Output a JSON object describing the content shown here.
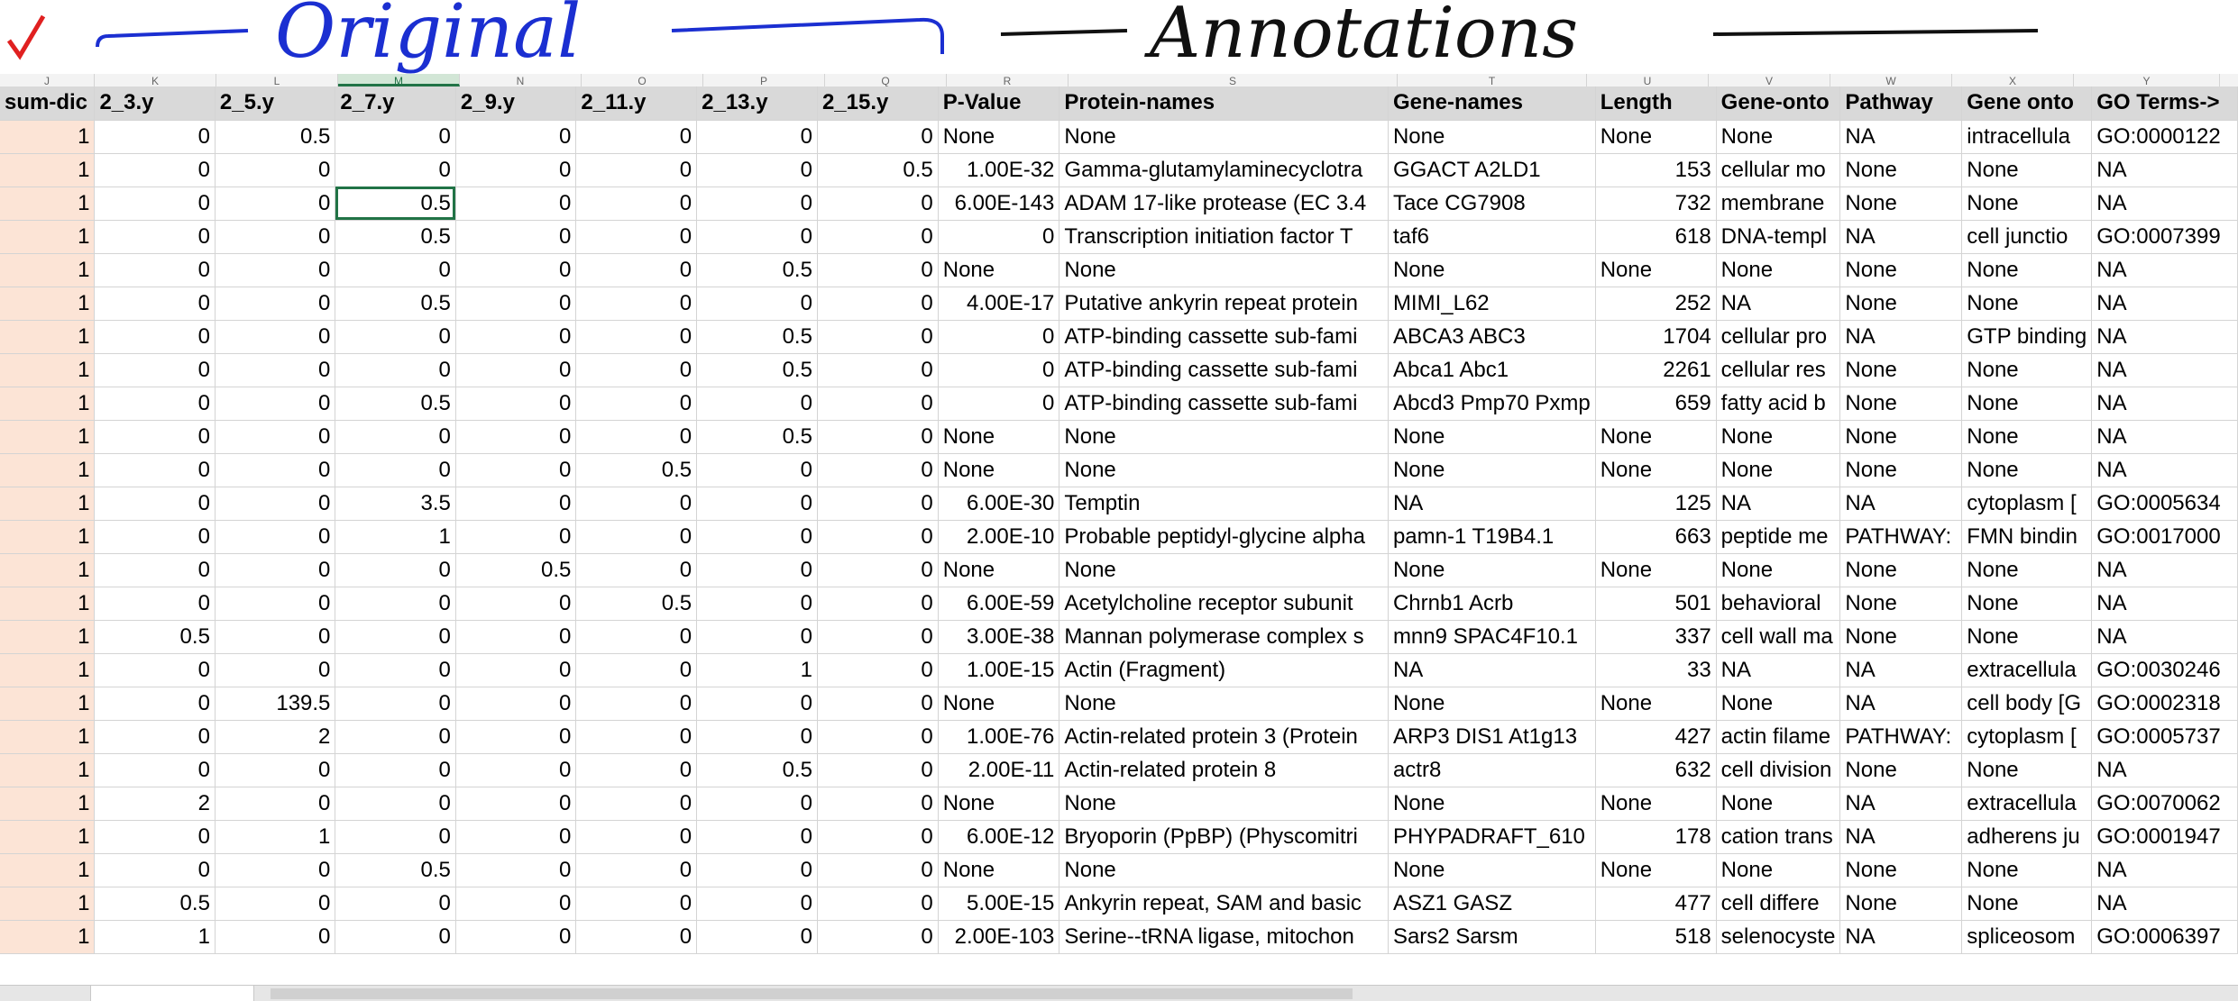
{
  "annotations": {
    "checkmark": "✓",
    "left_label": "Original",
    "right_label": "Annotations",
    "ink_color": "#1b2fd1",
    "right_ink_color": "#111111",
    "check_color": "#e02020"
  },
  "column_letters": [
    "J",
    "K",
    "L",
    "M",
    "N",
    "O",
    "P",
    "Q",
    "R",
    "S",
    "T",
    "U",
    "V",
    "W",
    "X",
    "Y"
  ],
  "selected_column_letter": "M",
  "headers": [
    "sum-dic",
    "2_3.y",
    "2_5.y",
    "2_7.y",
    "2_9.y",
    "2_11.y",
    "2_13.y",
    "2_15.y",
    "P-Value",
    "Protein-names",
    "Gene-names",
    "Length",
    "Gene-onto",
    "Pathway",
    "Gene onto",
    "GO Terms->"
  ],
  "rows": [
    [
      "1",
      "0",
      "0.5",
      "0",
      "0",
      "0",
      "0",
      "0",
      "None",
      "None",
      "None",
      "None",
      "None",
      "NA",
      "intracellula",
      "GO:0000122"
    ],
    [
      "1",
      "0",
      "0",
      "0",
      "0",
      "0",
      "0",
      "0.5",
      "1.00E-32",
      "Gamma-glutamylaminecyclotra",
      "GGACT A2LD1",
      "153",
      "cellular mo",
      "None",
      "None",
      "NA"
    ],
    [
      "1",
      "0",
      "0",
      "0.5",
      "0",
      "0",
      "0",
      "0",
      "6.00E-143",
      "ADAM 17-like protease (EC 3.4",
      "Tace CG7908",
      "732",
      "membrane",
      "None",
      "None",
      "NA"
    ],
    [
      "1",
      "0",
      "0",
      "0.5",
      "0",
      "0",
      "0",
      "0",
      "0",
      "Transcription initiation factor T",
      "taf6",
      "618",
      "DNA-templ",
      "NA",
      "cell junctio",
      "GO:0007399"
    ],
    [
      "1",
      "0",
      "0",
      "0",
      "0",
      "0",
      "0.5",
      "0",
      "None",
      "None",
      "None",
      "None",
      "None",
      "None",
      "None",
      "NA"
    ],
    [
      "1",
      "0",
      "0",
      "0.5",
      "0",
      "0",
      "0",
      "0",
      "4.00E-17",
      "Putative ankyrin repeat protein",
      "MIMI_L62",
      "252",
      "NA",
      "None",
      "None",
      "NA"
    ],
    [
      "1",
      "0",
      "0",
      "0",
      "0",
      "0",
      "0.5",
      "0",
      "0",
      "ATP-binding cassette sub-fami",
      "ABCA3 ABC3",
      "1704",
      "cellular pro",
      "NA",
      "GTP binding",
      "NA"
    ],
    [
      "1",
      "0",
      "0",
      "0",
      "0",
      "0",
      "0.5",
      "0",
      "0",
      "ATP-binding cassette sub-fami",
      "Abca1 Abc1",
      "2261",
      "cellular res",
      "None",
      "None",
      "NA"
    ],
    [
      "1",
      "0",
      "0",
      "0.5",
      "0",
      "0",
      "0",
      "0",
      "0",
      "ATP-binding cassette sub-fami",
      "Abcd3 Pmp70 Pxmp",
      "659",
      "fatty acid b",
      "None",
      "None",
      "NA"
    ],
    [
      "1",
      "0",
      "0",
      "0",
      "0",
      "0",
      "0.5",
      "0",
      "None",
      "None",
      "None",
      "None",
      "None",
      "None",
      "None",
      "NA"
    ],
    [
      "1",
      "0",
      "0",
      "0",
      "0",
      "0.5",
      "0",
      "0",
      "None",
      "None",
      "None",
      "None",
      "None",
      "None",
      "None",
      "NA"
    ],
    [
      "1",
      "0",
      "0",
      "3.5",
      "0",
      "0",
      "0",
      "0",
      "6.00E-30",
      "Temptin",
      "NA",
      "125",
      "NA",
      "NA",
      "cytoplasm [",
      "GO:0005634"
    ],
    [
      "1",
      "0",
      "0",
      "1",
      "0",
      "0",
      "0",
      "0",
      "2.00E-10",
      "Probable peptidyl-glycine alpha",
      "pamn-1 T19B4.1",
      "663",
      "peptide me",
      "PATHWAY:",
      "FMN bindin",
      "GO:0017000"
    ],
    [
      "1",
      "0",
      "0",
      "0",
      "0.5",
      "0",
      "0",
      "0",
      "None",
      "None",
      "None",
      "None",
      "None",
      "None",
      "None",
      "NA"
    ],
    [
      "1",
      "0",
      "0",
      "0",
      "0",
      "0.5",
      "0",
      "0",
      "6.00E-59",
      "Acetylcholine receptor subunit",
      "Chrnb1 Acrb",
      "501",
      "behavioral",
      "None",
      "None",
      "NA"
    ],
    [
      "1",
      "0.5",
      "0",
      "0",
      "0",
      "0",
      "0",
      "0",
      "3.00E-38",
      "Mannan polymerase complex s",
      "mnn9 SPAC4F10.1",
      "337",
      "cell wall ma",
      "None",
      "None",
      "NA"
    ],
    [
      "1",
      "0",
      "0",
      "0",
      "0",
      "0",
      "1",
      "0",
      "1.00E-15",
      "Actin (Fragment)",
      "NA",
      "33",
      "NA",
      "NA",
      "extracellula",
      "GO:0030246"
    ],
    [
      "1",
      "0",
      "139.5",
      "0",
      "0",
      "0",
      "0",
      "0",
      "None",
      "None",
      "None",
      "None",
      "None",
      "NA",
      "cell body [G",
      "GO:0002318"
    ],
    [
      "1",
      "0",
      "2",
      "0",
      "0",
      "0",
      "0",
      "0",
      "1.00E-76",
      "Actin-related protein 3 (Protein",
      "ARP3 DIS1 At1g13",
      "427",
      "actin filame",
      "PATHWAY:",
      "cytoplasm [",
      "GO:0005737"
    ],
    [
      "1",
      "0",
      "0",
      "0",
      "0",
      "0",
      "0.5",
      "0",
      "2.00E-11",
      "Actin-related protein 8",
      "actr8",
      "632",
      "cell division",
      "None",
      "None",
      "NA"
    ],
    [
      "1",
      "2",
      "0",
      "0",
      "0",
      "0",
      "0",
      "0",
      "None",
      "None",
      "None",
      "None",
      "None",
      "NA",
      "extracellula",
      "GO:0070062"
    ],
    [
      "1",
      "0",
      "1",
      "0",
      "0",
      "0",
      "0",
      "0",
      "6.00E-12",
      "Bryoporin (PpBP) (Physcomitri",
      "PHYPADRAFT_610",
      "178",
      "cation trans",
      "NA",
      "adherens ju",
      "GO:0001947"
    ],
    [
      "1",
      "0",
      "0",
      "0.5",
      "0",
      "0",
      "0",
      "0",
      "None",
      "None",
      "None",
      "None",
      "None",
      "None",
      "None",
      "NA"
    ],
    [
      "1",
      "0.5",
      "0",
      "0",
      "0",
      "0",
      "0",
      "0",
      "5.00E-15",
      "Ankyrin repeat, SAM and basic",
      "ASZ1 GASZ",
      "477",
      "cell differe",
      "None",
      "None",
      "NA"
    ],
    [
      "1",
      "1",
      "0",
      "0",
      "0",
      "0",
      "0",
      "0",
      "2.00E-103",
      "Serine--tRNA ligase, mitochon",
      "Sars2 Sarsm",
      "518",
      "selenocyste",
      "NA",
      "spliceosom",
      "GO:0006397"
    ]
  ],
  "active_cell": {
    "row": 2,
    "col": 3
  }
}
